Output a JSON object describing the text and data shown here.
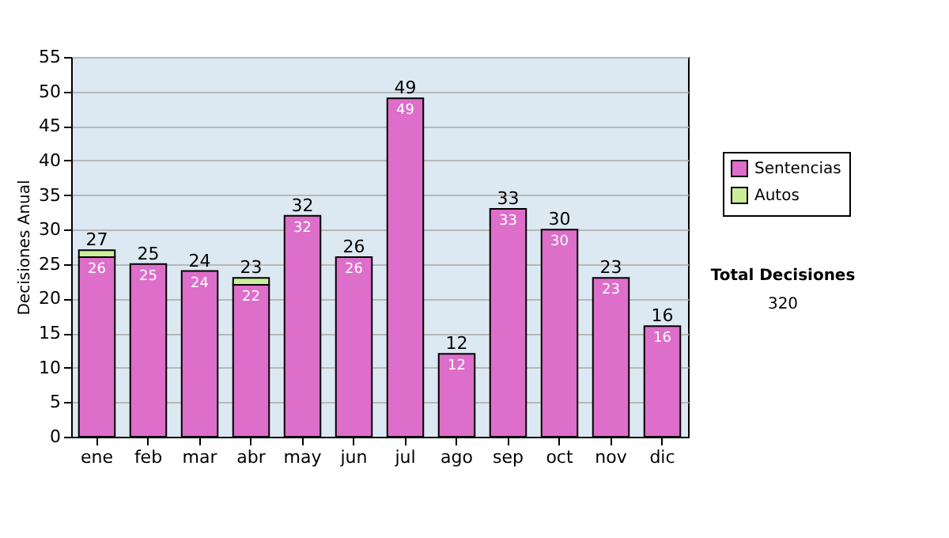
{
  "chart_data": {
    "type": "bar",
    "stacked": true,
    "ylabel": "Decisiones Anual",
    "categories": [
      "ene",
      "feb",
      "mar",
      "abr",
      "may",
      "jun",
      "jul",
      "ago",
      "sep",
      "oct",
      "nov",
      "dic"
    ],
    "series": [
      {
        "name": "Sentencias",
        "color": "#dd6ec9",
        "values": [
          26,
          25,
          24,
          22,
          32,
          26,
          49,
          12,
          33,
          30,
          23,
          16
        ],
        "value_labels": [
          "26",
          "25",
          "24",
          "22",
          "32",
          "26",
          "49",
          "12",
          "33",
          "30",
          "23",
          "16"
        ]
      },
      {
        "name": "Autos",
        "color": "#ccee99",
        "values": [
          1,
          0,
          0,
          1,
          0,
          0,
          0,
          0,
          0,
          0,
          0,
          0
        ]
      }
    ],
    "totals": [
      "27",
      "25",
      "24",
      "23",
      "32",
      "26",
      "49",
      "12",
      "33",
      "30",
      "23",
      "16"
    ],
    "ylim": [
      0,
      55
    ],
    "yticks": [
      0,
      5,
      10,
      15,
      20,
      25,
      30,
      35,
      40,
      45,
      50,
      55
    ],
    "grid": "y",
    "legend": "right",
    "annotations": [
      "Total Decisiones",
      "320"
    ]
  }
}
